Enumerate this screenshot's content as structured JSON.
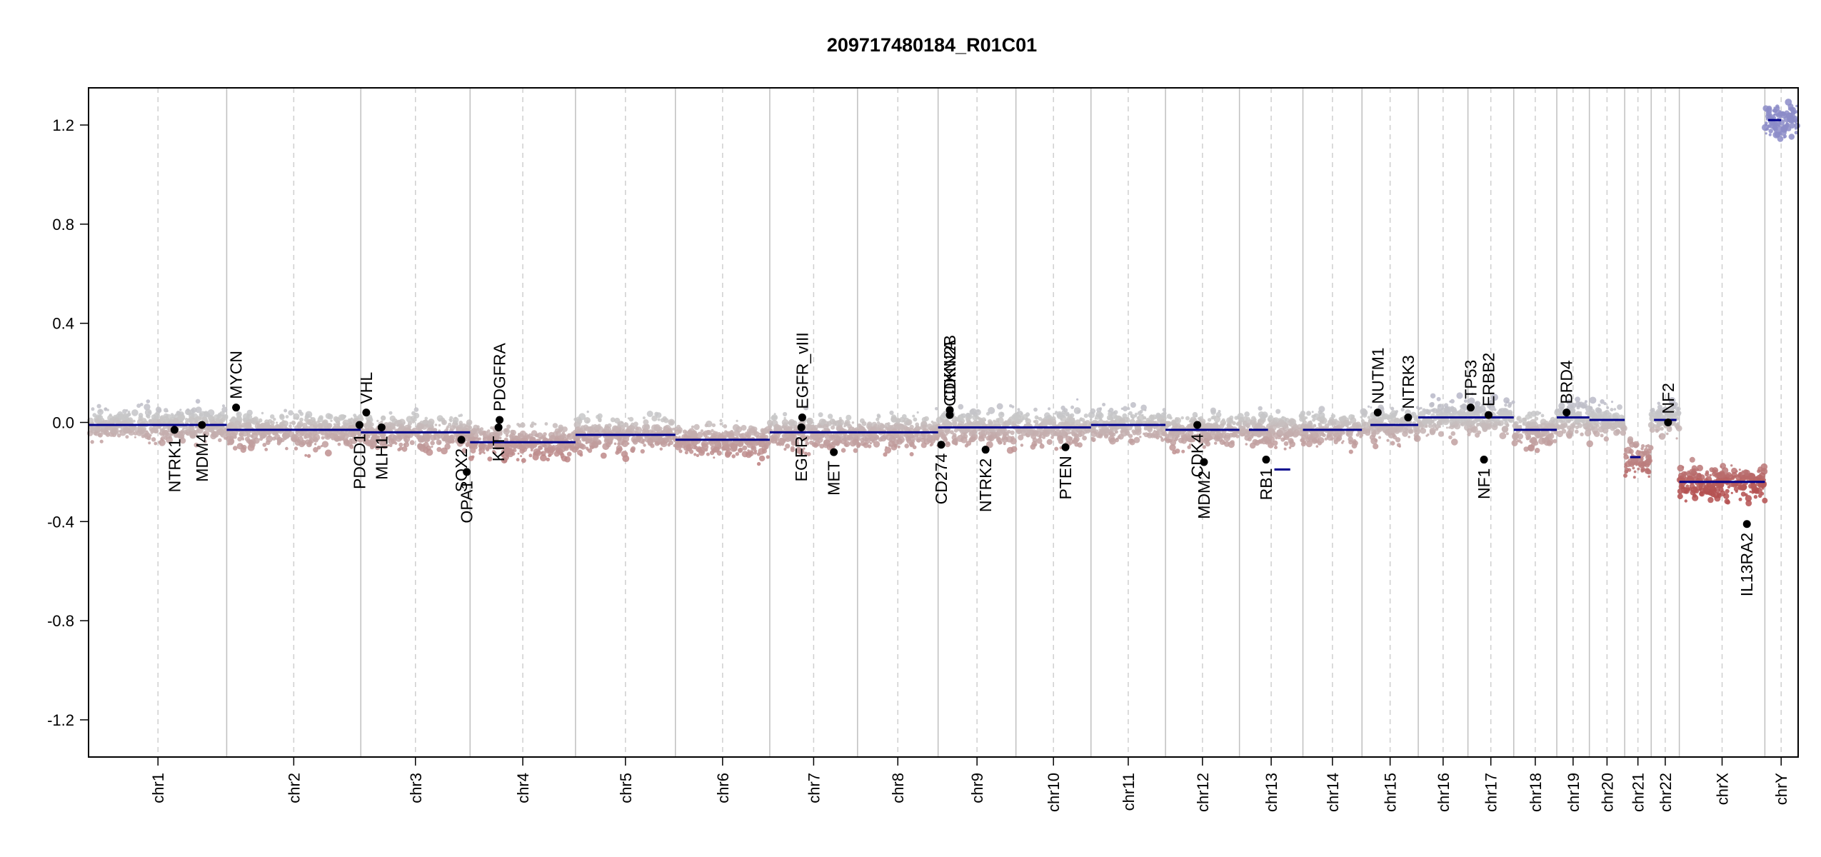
{
  "chart_data": {
    "type": "scatter",
    "title": "209717480184_R01C01",
    "xlabel": "",
    "ylabel": "",
    "ylim": [
      -1.35,
      1.35
    ],
    "yticks": [
      -1.2,
      -0.8,
      -0.4,
      0.0,
      0.4,
      0.8,
      1.2
    ],
    "ytick_labels": [
      "-1.2",
      "-0.8",
      "-0.4",
      "0.0",
      "0.4",
      "0.8",
      "1.2"
    ],
    "grid": false,
    "colors": {
      "segment": "#00008b",
      "gain": "#8c8cc8",
      "loss": "#b45050",
      "neutral": "#c8c8c8",
      "gene_point": "#000000",
      "chrom_line": "#bfbfbf",
      "centromere_line": "#cfcfcf"
    },
    "chromosomes": [
      {
        "name": "chr1",
        "label": "chr1",
        "length": 249
      },
      {
        "name": "chr2",
        "label": "chr2",
        "length": 243
      },
      {
        "name": "chr3",
        "label": "chr3",
        "length": 198
      },
      {
        "name": "chr4",
        "label": "chr4",
        "length": 191
      },
      {
        "name": "chr5",
        "label": "chr5",
        "length": 181
      },
      {
        "name": "chr6",
        "label": "chr6",
        "length": 171
      },
      {
        "name": "chr7",
        "label": "chr7",
        "length": 159
      },
      {
        "name": "chr8",
        "label": "chr8",
        "length": 146
      },
      {
        "name": "chr9",
        "label": "chr9",
        "length": 141
      },
      {
        "name": "chr10",
        "label": "chr10",
        "length": 136
      },
      {
        "name": "chr11",
        "label": "chr11",
        "length": 135
      },
      {
        "name": "chr12",
        "label": "chr12",
        "length": 134
      },
      {
        "name": "chr13",
        "label": "chr13",
        "length": 115
      },
      {
        "name": "chr14",
        "label": "chr14",
        "length": 107
      },
      {
        "name": "chr15",
        "label": "chr15",
        "length": 102
      },
      {
        "name": "chr16",
        "label": "chr16",
        "length": 90
      },
      {
        "name": "chr17",
        "label": "chr17",
        "length": 83
      },
      {
        "name": "chr18",
        "label": "chr18",
        "length": 78
      },
      {
        "name": "chr19",
        "label": "chr19",
        "length": 59
      },
      {
        "name": "chr20",
        "label": "chr20",
        "length": 64
      },
      {
        "name": "chr21",
        "label": "chr21",
        "length": 48
      },
      {
        "name": "chr22",
        "label": "chr22",
        "length": 51
      },
      {
        "name": "chrX",
        "label": "chrX",
        "length": 155
      },
      {
        "name": "chrY",
        "label": "chrY",
        "length": 59
      }
    ],
    "segments": [
      {
        "chr": "chr1",
        "start": 0,
        "end": 1,
        "y": -0.01
      },
      {
        "chr": "chr2",
        "start": 0,
        "end": 1,
        "y": -0.03
      },
      {
        "chr": "chr3",
        "start": 0,
        "end": 1,
        "y": -0.04
      },
      {
        "chr": "chr4",
        "start": 0,
        "end": 1,
        "y": -0.08
      },
      {
        "chr": "chr5",
        "start": 0,
        "end": 1,
        "y": -0.05
      },
      {
        "chr": "chr6",
        "start": 0,
        "end": 1,
        "y": -0.07
      },
      {
        "chr": "chr7",
        "start": 0,
        "end": 1,
        "y": -0.04
      },
      {
        "chr": "chr8",
        "start": 0,
        "end": 1,
        "y": -0.04
      },
      {
        "chr": "chr9",
        "start": 0,
        "end": 1,
        "y": -0.02
      },
      {
        "chr": "chr10",
        "start": 0,
        "end": 1,
        "y": -0.02
      },
      {
        "chr": "chr11",
        "start": 0,
        "end": 1,
        "y": -0.01
      },
      {
        "chr": "chr12",
        "start": 0,
        "end": 1,
        "y": -0.03
      },
      {
        "chr": "chr13",
        "start": 0.15,
        "end": 0.45,
        "y": -0.03
      },
      {
        "chr": "chr13",
        "start": 0.55,
        "end": 0.8,
        "y": -0.19
      },
      {
        "chr": "chr14",
        "start": 0,
        "end": 1,
        "y": -0.03
      },
      {
        "chr": "chr15",
        "start": 0.15,
        "end": 1,
        "y": -0.01
      },
      {
        "chr": "chr16",
        "start": 0,
        "end": 1,
        "y": 0.02
      },
      {
        "chr": "chr17",
        "start": 0,
        "end": 1,
        "y": 0.02
      },
      {
        "chr": "chr18",
        "start": 0,
        "end": 1,
        "y": -0.03
      },
      {
        "chr": "chr19",
        "start": 0,
        "end": 1,
        "y": 0.02
      },
      {
        "chr": "chr20",
        "start": 0,
        "end": 1,
        "y": 0.01
      },
      {
        "chr": "chr21",
        "start": 0.2,
        "end": 0.6,
        "y": -0.14
      },
      {
        "chr": "chr22",
        "start": 0.1,
        "end": 0.9,
        "y": 0.01
      },
      {
        "chr": "chrX",
        "start": 0,
        "end": 1,
        "y": -0.24
      },
      {
        "chr": "chrY",
        "start": 0.1,
        "end": 0.5,
        "y": 1.22
      }
    ],
    "genes": [
      {
        "name": "NTRK1",
        "chr": "chr1",
        "pos": 0.62,
        "y": -0.03
      },
      {
        "name": "MDM4",
        "chr": "chr1",
        "pos": 0.82,
        "y": -0.01
      },
      {
        "name": "MYCN",
        "chr": "chr2",
        "pos": 0.07,
        "y": 0.06
      },
      {
        "name": "PDCD1",
        "chr": "chr2",
        "pos": 0.99,
        "y": -0.01
      },
      {
        "name": "VHL",
        "chr": "chr3",
        "pos": 0.05,
        "y": 0.04
      },
      {
        "name": "MLH1",
        "chr": "chr3",
        "pos": 0.19,
        "y": -0.02
      },
      {
        "name": "SOX2",
        "chr": "chr3",
        "pos": 0.92,
        "y": -0.07
      },
      {
        "name": "OPA1",
        "chr": "chr3",
        "pos": 0.97,
        "y": -0.2
      },
      {
        "name": "KIT",
        "chr": "chr4",
        "pos": 0.27,
        "y": -0.02
      },
      {
        "name": "PDGFRA",
        "chr": "chr4",
        "pos": 0.28,
        "y": 0.01
      },
      {
        "name": "EGFR",
        "chr": "chr7",
        "pos": 0.36,
        "y": -0.02
      },
      {
        "name": "EGFR_vIII",
        "chr": "chr7",
        "pos": 0.37,
        "y": 0.02
      },
      {
        "name": "MET",
        "chr": "chr7",
        "pos": 0.73,
        "y": -0.12
      },
      {
        "name": "CD274",
        "chr": "chr9",
        "pos": 0.04,
        "y": -0.09
      },
      {
        "name": "CDKN2A",
        "chr": "chr9",
        "pos": 0.15,
        "y": 0.03
      },
      {
        "name": "CDKN2B",
        "chr": "chr9",
        "pos": 0.15,
        "y": 0.05
      },
      {
        "name": "NTRK2",
        "chr": "chr9",
        "pos": 0.61,
        "y": -0.11
      },
      {
        "name": "PTEN",
        "chr": "chr10",
        "pos": 0.66,
        "y": -0.1
      },
      {
        "name": "CDK4",
        "chr": "chr12",
        "pos": 0.43,
        "y": -0.01
      },
      {
        "name": "MDM2",
        "chr": "chr12",
        "pos": 0.52,
        "y": -0.16
      },
      {
        "name": "RB1",
        "chr": "chr13",
        "pos": 0.42,
        "y": -0.15
      },
      {
        "name": "NUTM1",
        "chr": "chr15",
        "pos": 0.28,
        "y": 0.04
      },
      {
        "name": "NTRK3",
        "chr": "chr15",
        "pos": 0.82,
        "y": 0.02
      },
      {
        "name": "TP53",
        "chr": "chr17",
        "pos": 0.06,
        "y": 0.06
      },
      {
        "name": "NF1",
        "chr": "chr17",
        "pos": 0.35,
        "y": -0.15
      },
      {
        "name": "ERBB2",
        "chr": "chr17",
        "pos": 0.45,
        "y": 0.03
      },
      {
        "name": "BRD4",
        "chr": "chr19",
        "pos": 0.3,
        "y": 0.04
      },
      {
        "name": "NF2",
        "chr": "chr22",
        "pos": 0.6,
        "y": 0.0
      },
      {
        "name": "IL13RA2",
        "chr": "chrX",
        "pos": 0.79,
        "y": -0.41
      }
    ]
  }
}
